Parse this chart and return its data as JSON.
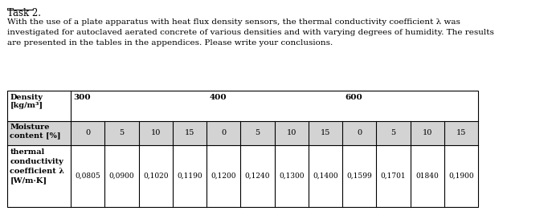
{
  "title": "Task 2.",
  "paragraph": "With the use of a plate apparatus with heat flux density sensors, the thermal conductivity coefficient λ was\ninvestigated for autoclaved aerated concrete of various densities and with varying degrees of humidity. The results\nare presented in the tables in the appendices. Please write your conclusions.",
  "density_label": "Density\n[kg/m³]",
  "density_values": [
    "300",
    "400",
    "600"
  ],
  "moisture_label": "Moisture\ncontent [%]",
  "moisture_values": [
    "0",
    "5",
    "10",
    "15",
    "0",
    "5",
    "10",
    "15",
    "0",
    "5",
    "10",
    "15"
  ],
  "conductivity_label": "thermal\nconductivity\ncoefficient λ\n[W/m·K]",
  "conductivity_values": [
    "0,0805",
    "0,0900",
    "0,1020",
    "0,1190",
    "0,1200",
    "0,1240",
    "0,1300",
    "0,1400",
    "0,1599",
    "0,1701",
    "01840",
    "0,1900"
  ],
  "header_bg": "#d3d3d3",
  "white_bg": "#ffffff",
  "border_color": "#000000",
  "text_color": "#000000",
  "font_size_title": 8.5,
  "font_size_body": 7.5,
  "font_size_table": 7.0
}
